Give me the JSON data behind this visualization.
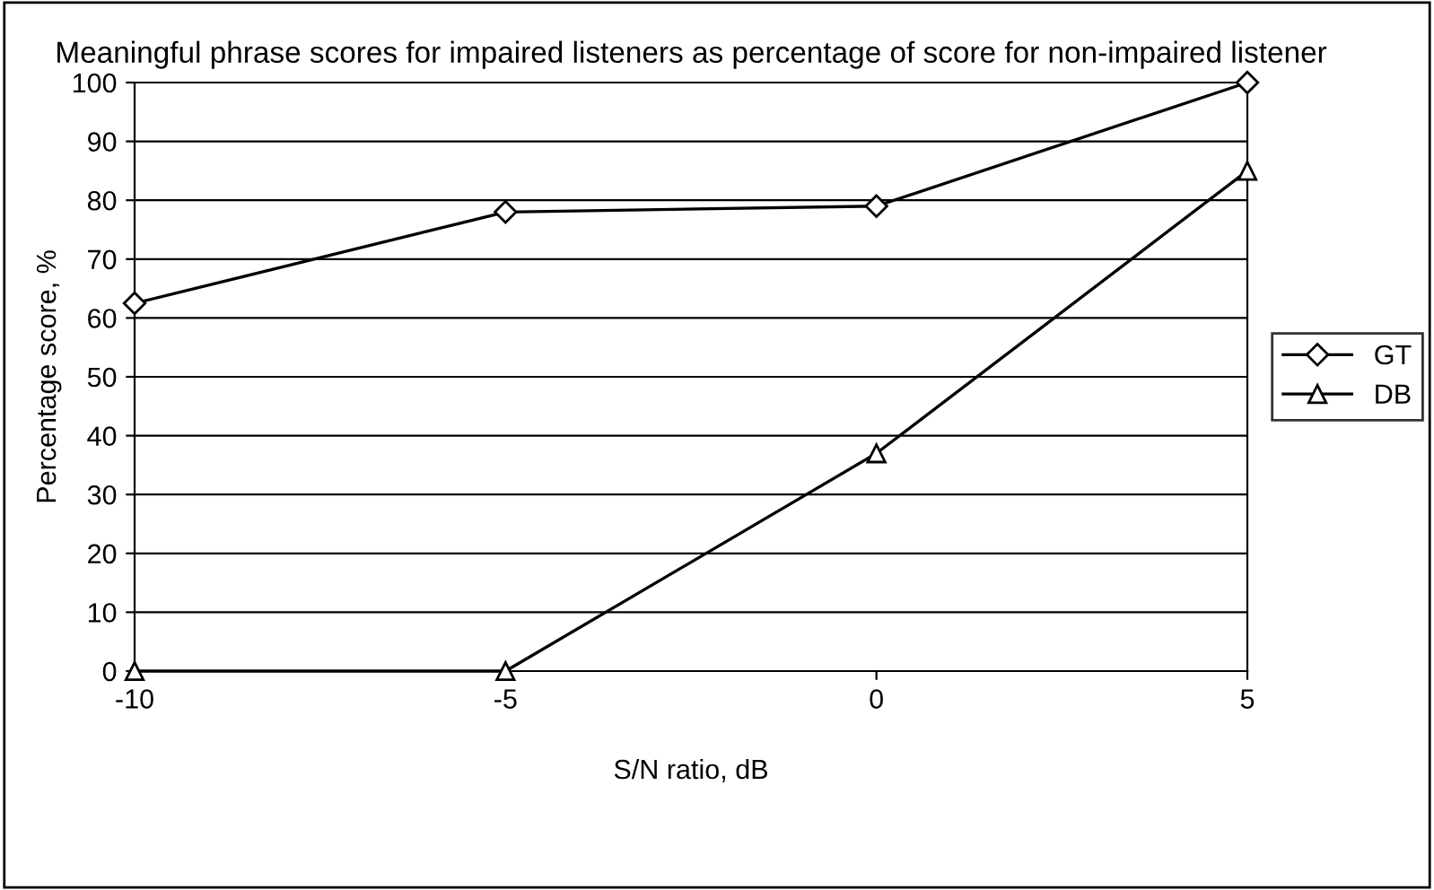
{
  "chart_data": {
    "type": "line",
    "title": "Meaningful phrase scores for impaired listeners as percentage of score for non-impaired listener",
    "xlabel": "S/N ratio, dB",
    "ylabel": "Percentage score, %",
    "x": [
      -10,
      -5,
      0,
      5
    ],
    "series": [
      {
        "name": "GT",
        "color": "#000000",
        "marker": "diamond",
        "values": [
          62.5,
          78,
          79,
          100
        ]
      },
      {
        "name": "DB",
        "color": "#000000",
        "marker": "triangle",
        "values": [
          0,
          0,
          37,
          85
        ]
      }
    ],
    "xlim": [
      -10,
      5
    ],
    "xticks": [
      -10,
      -5,
      0,
      5
    ],
    "ylim": [
      0,
      100
    ],
    "yticks": [
      0,
      10,
      20,
      30,
      40,
      50,
      60,
      70,
      80,
      90,
      100
    ],
    "grid": "y",
    "legend": "right",
    "line_style": "solid"
  }
}
